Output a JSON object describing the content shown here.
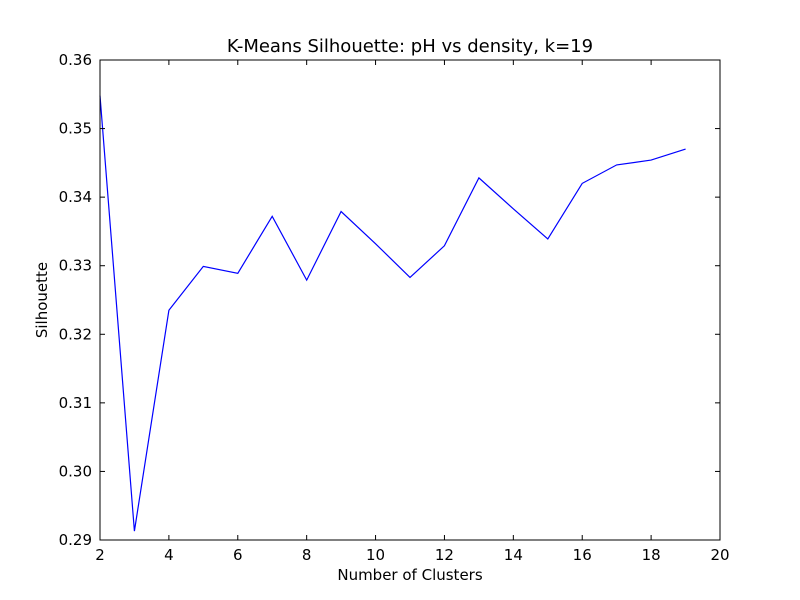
{
  "chart_data": {
    "type": "line",
    "title": "K-Means Silhouette: pH vs density, k=19",
    "xlabel": "Number of Clusters",
    "ylabel": "Silhouette",
    "xlim": [
      2,
      20
    ],
    "ylim": [
      0.29,
      0.36
    ],
    "xticks": [
      2,
      4,
      6,
      8,
      10,
      12,
      14,
      16,
      18,
      20
    ],
    "xtick_labels": [
      "2",
      "4",
      "6",
      "8",
      "10",
      "12",
      "14",
      "16",
      "18",
      "20"
    ],
    "yticks": [
      0.29,
      0.3,
      0.31,
      0.32,
      0.33,
      0.34,
      0.35,
      0.36
    ],
    "ytick_labels": [
      "0.29",
      "0.30",
      "0.31",
      "0.32",
      "0.33",
      "0.34",
      "0.35",
      "0.36"
    ],
    "grid": false,
    "series": [
      {
        "color": "#0000ff",
        "x": [
          2,
          3,
          4,
          5,
          6,
          7,
          8,
          9,
          10,
          11,
          12,
          13,
          14,
          15,
          16,
          17,
          18,
          19
        ],
        "y": [
          0.3548,
          0.2913,
          0.3235,
          0.3299,
          0.3289,
          0.3372,
          0.3279,
          0.3379,
          0.3332,
          0.3283,
          0.3329,
          0.3428,
          0.3383,
          0.3339,
          0.342,
          0.3447,
          0.3454,
          0.347
        ]
      }
    ]
  }
}
